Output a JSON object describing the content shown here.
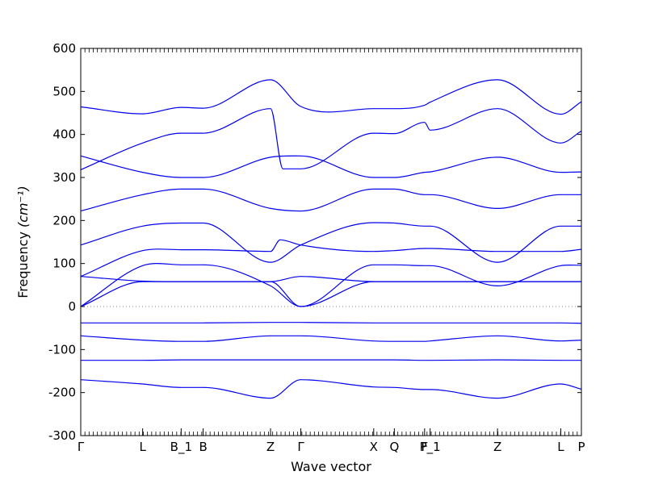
{
  "chart_data": {
    "type": "line",
    "xlabel": "Wave vector",
    "ylabel": "Frequency ",
    "ylabel_unit": "(cm⁻¹)",
    "ylim": [
      -300,
      600
    ],
    "yticks": [
      -300,
      -200,
      -100,
      0,
      100,
      200,
      300,
      400,
      500,
      600
    ],
    "xlim": [
      0,
      3.64
    ],
    "zero_line": true,
    "grid": false,
    "legend": "none",
    "colors": {
      "line": "#0000ee",
      "axes": "#000000",
      "zero_line": "#808080"
    },
    "xticks": [
      {
        "label": "Γ",
        "x": 0.0
      },
      {
        "label": "L",
        "x": 0.45
      },
      {
        "label": "B_1",
        "x": 0.73
      },
      {
        "label": "B",
        "x": 0.89
      },
      {
        "label": "Z",
        "x": 1.38
      },
      {
        "label": "Γ",
        "x": 1.6
      },
      {
        "label": "X",
        "x": 2.13
      },
      {
        "label": "Q",
        "x": 2.28
      },
      {
        "label": "F",
        "x": 2.5
      },
      {
        "label": "P_1",
        "x": 2.54
      },
      {
        "label": "Z",
        "x": 3.03
      },
      {
        "label": "L",
        "x": 3.49
      },
      {
        "label": "P",
        "x": 3.64
      }
    ],
    "series": [
      {
        "x": [
          0,
          0.45,
          0.73,
          0.89,
          1.38,
          1.6,
          2.13,
          2.28,
          2.5,
          2.54,
          3.03,
          3.49,
          3.64
        ],
        "values": [
          464,
          448,
          463,
          461,
          527,
          465,
          460,
          460,
          468,
          475,
          527,
          447,
          476
        ]
      },
      {
        "x": [
          0,
          0.45,
          0.73,
          0.89,
          1.38,
          1.47,
          1.6,
          2.13,
          2.28,
          2.5,
          2.54,
          3.03,
          3.49,
          3.64
        ],
        "values": [
          318,
          380,
          403,
          403,
          460,
          320,
          320,
          403,
          402,
          428,
          410,
          460,
          380,
          408
        ]
      },
      {
        "x": [
          0,
          0.45,
          0.73,
          0.89,
          1.38,
          1.6,
          2.13,
          2.28,
          2.5,
          2.54,
          3.03,
          3.49,
          3.64
        ],
        "values": [
          350,
          312,
          300,
          300,
          347,
          350,
          300,
          300,
          312,
          313,
          347,
          312,
          313
        ]
      },
      {
        "x": [
          0,
          0.45,
          0.73,
          0.89,
          1.38,
          1.6,
          2.13,
          2.28,
          2.5,
          2.54,
          3.03,
          3.49,
          3.64
        ],
        "values": [
          222,
          260,
          273,
          273,
          228,
          222,
          273,
          273,
          260,
          260,
          228,
          260,
          260
        ]
      },
      {
        "x": [
          0,
          0.45,
          0.73,
          0.89,
          1.38,
          1.6,
          2.13,
          2.28,
          2.5,
          2.54,
          3.03,
          3.49,
          3.64
        ],
        "values": [
          143,
          187,
          194,
          194,
          103,
          143,
          195,
          194,
          187,
          187,
          103,
          187,
          187
        ]
      },
      {
        "x": [
          0,
          0.45,
          0.73,
          0.89,
          1.38,
          1.45,
          1.6,
          2.13,
          2.28,
          2.5,
          2.54,
          3.03,
          3.49,
          3.64
        ],
        "values": [
          70,
          130,
          132,
          132,
          128,
          155,
          143,
          128,
          130,
          135,
          135,
          128,
          128,
          133
        ]
      },
      {
        "x": [
          0,
          0.45,
          0.73,
          0.89,
          1.38,
          1.6,
          2.13,
          2.28,
          2.5,
          2.54,
          3.03,
          3.49,
          3.64
        ],
        "values": [
          0,
          95,
          97,
          97,
          48,
          0,
          97,
          97,
          95,
          95,
          48,
          95,
          96
        ]
      },
      {
        "x": [
          0,
          0.45,
          0.73,
          0.89,
          1.38,
          1.6,
          2.13,
          2.28,
          2.5,
          2.54,
          3.03,
          3.49,
          3.64
        ],
        "values": [
          70,
          59,
          58,
          58,
          58,
          70,
          58,
          58,
          58,
          58,
          58,
          58,
          58
        ]
      },
      {
        "x": [
          0,
          0.45,
          0.73,
          0.89,
          1.38,
          1.6,
          2.13,
          2.28,
          2.5,
          2.54,
          3.03,
          3.49,
          3.64
        ],
        "values": [
          0,
          58,
          58,
          58,
          58,
          0,
          58,
          58,
          58,
          58,
          58,
          58,
          58
        ]
      },
      {
        "x": [
          0,
          0.45,
          0.73,
          0.89,
          1.38,
          1.6,
          2.13,
          2.28,
          2.5,
          2.54,
          3.03,
          3.49,
          3.64
        ],
        "values": [
          -38,
          -38,
          -38,
          -38,
          -37,
          -37,
          -38,
          -38,
          -38,
          -38,
          -38,
          -38,
          -39
        ]
      },
      {
        "x": [
          0,
          0.45,
          0.73,
          0.89,
          1.38,
          1.6,
          2.13,
          2.28,
          2.5,
          2.54,
          3.03,
          3.49,
          3.64
        ],
        "values": [
          -68,
          -78,
          -81,
          -81,
          -68,
          -68,
          -80,
          -81,
          -81,
          -80,
          -68,
          -80,
          -78
        ]
      },
      {
        "x": [
          0,
          0.45,
          0.73,
          0.89,
          1.38,
          1.6,
          2.13,
          2.28,
          2.5,
          2.54,
          3.03,
          3.49,
          3.64
        ],
        "values": [
          -125,
          -125,
          -124,
          -124,
          -124,
          -124,
          -124,
          -124,
          -125,
          -125,
          -124,
          -125,
          -125
        ]
      },
      {
        "x": [
          0,
          0.45,
          0.73,
          0.89,
          1.38,
          1.6,
          2.13,
          2.28,
          2.5,
          2.54,
          3.03,
          3.49,
          3.64
        ],
        "values": [
          -170,
          -180,
          -188,
          -188,
          -213,
          -170,
          -187,
          -188,
          -193,
          -193,
          -213,
          -180,
          -192
        ]
      }
    ]
  }
}
